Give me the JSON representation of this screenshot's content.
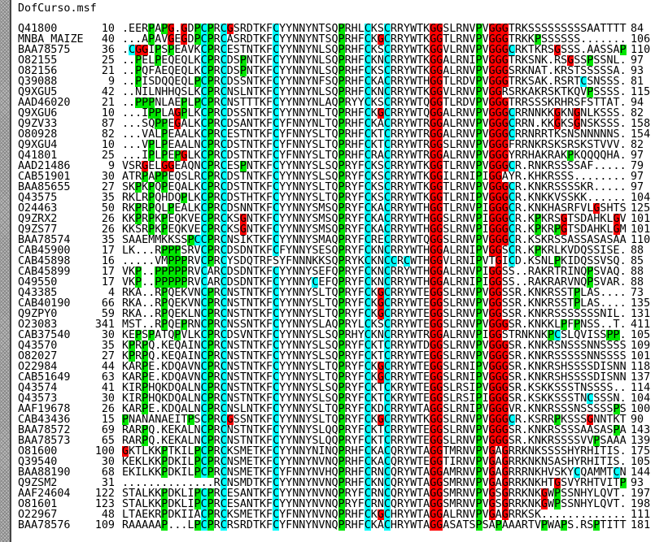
{
  "window": {
    "title": "DofCurso.msf"
  },
  "colors": {
    "C": "#00ffff",
    "P": "#00e600",
    "G": "#ff0000"
  },
  "alignment": [
    {
      "name": "Q41800",
      "start": "10",
      "seq": ".EERPAPG.GDPCPRCGSRDTKFCYYNNYNTSQPRHLCKSCRRYWTKGGSLRNVPVGGGTRKSSSSSSSSSAATTTT",
      "end": "84"
    },
    {
      "name": "MNBA_MAIZE",
      "start": "40",
      "seq": "...APAVGEGDPCPRCASRDTKFCYYNNYNTSQPRHFCKGCRRYWTKGGTLRNVPVGGGTRKKPSSSSSS.......",
      "end": "106"
    },
    {
      "name": "BAA78575",
      "start": "36",
      "seq": ".CGGIPSPEAVKCPRCESTNTKFCYYNNYNLSQPRHFCKSCRRYWTKGGVLRNVPVGGGCRKTKRSGSSS.AASSAP",
      "end": "110"
    },
    {
      "name": "O82155",
      "start": "25",
      "seq": "..PELPEQEQLKCPRCDSPNTKFCYYNNYNLSQPRHFCKNCRRYWTKGGALRNIPVGGGTRKSNK.RSGSSPSSNL.",
      "end": "97"
    },
    {
      "name": "O82156",
      "start": "21",
      "seq": "..PQFAEQEQLKCPRCDSPNTKFCYYNNYNLSQPRHFCKSCRRYWTKGGALRNVPVGGGSRKNAT.KRSTSSSSSA.",
      "end": "93"
    },
    {
      "name": "Q39088",
      "start": "9",
      "seq": "..PISDQQEQLPCPRCDSSNTKFCYYNNYNFSQPRHFCKACRRYWTHGGTLRDVPVGGGTRKSAK.RSRTCSNSSS.",
      "end": "81"
    },
    {
      "name": "Q9XGU5",
      "start": "42",
      "seq": "..NILNHHQSLKCPRCNSLNTKFCYYNNYNLSQPRHFCKNCRRYWTKGGVLRNVPVGGRSRKAKRSKTKQVPSSSS.",
      "end": "115"
    },
    {
      "name": "AAD46020",
      "start": "21",
      "seq": "..PPPNLAEPLPCPRCNSTTTKFCYYNNYNLAQPRYYCKSCRRYWTQGGTLRDVPVGGGTRRSSSKRHRSFSTTAT.",
      "end": "94"
    },
    {
      "name": "Q9XGU6",
      "start": "10",
      "seq": "...IPPLAGPLKCPRCDSSNTKFCYYNNYNLTQPRHFCKGCRRYWTQGGALRNVPVGGGCRRNNKKGKNGNLKSSS.",
      "end": "82"
    },
    {
      "name": "Q9ZV33",
      "start": "87",
      "seq": "...SQPPEGALKCPRCDSANTKFCYFNNYNLTQPRHFCKACRRYWTRGGALRNVPVGGGCRRN.KKGKSGNSKSSS.",
      "end": "158"
    },
    {
      "name": "O80928",
      "start": "82",
      "seq": "...VALPEAALKCPRCESTNTKFCYFNNYSLTQPRHFCKTCRRYWTRGGALRNVPVGGGCRRNRRTKSNSNNNNNS.",
      "end": "154"
    },
    {
      "name": "Q9XGU4",
      "start": "10",
      "seq": "...VPLPEAALNCPRCDSTNTKFCYFNNYSLTQPRHFCKTCRRYWTRGGSLRNVPVGGGFRRNKRSKSRSKSTVVV.",
      "end": "82"
    },
    {
      "name": "Q41801",
      "start": "25",
      "seq": "...IPLPEPGLKCPRCDSTNTKFCYFNNYSLTQPRHFCRACRRYWTRGGALRNVPVGGGYRRHAKRAKPKQQQQHA.",
      "end": "97"
    },
    {
      "name": "AAD21486",
      "start": "9",
      "seq": "VSRGELGGEAQNCPRCESPNTKFCYYNNYSLSQPRYFCKSCRRYWTKGGTLRNVPVGGGCR.RNKRSSSSAF.....",
      "end": "79"
    },
    {
      "name": "CAB51901",
      "start": "30",
      "seq": "ATRPAPPEQSLRCPRCDSTNTKFCYYNNYSLSQPRYFCKSCRRYWTKGGILRNIPIGGAYR.KHKRSSS........",
      "end": "97"
    },
    {
      "name": "BAA85655",
      "start": "27",
      "seq": "SKPKPQPEQALKCPRCDSTNTKFCYYNNYSLTQPRYFCKSCRRYWTKGGTLRNVPVGGGCR.KNKRSSSSKR.....",
      "end": "97"
    },
    {
      "name": "Q43575",
      "start": "35",
      "seq": "RKLRPQHDQPLKCPRCDSTHTKFCYYNNYSLTQPRYFCKSCRRYWTKGGTLRNIPVGGGCR.KNKKVSSKK......",
      "end": "104"
    },
    {
      "name": "O24463",
      "start": "50",
      "seq": "RKPRPQLPEALKCPRCDSNNTKFCYYNNYSMSQPRYFCKACRRYWTHGGTLRNVPIGGGCR.KNKHASRFVLGSHTS",
      "end": "125"
    },
    {
      "name": "Q9ZRX2",
      "start": "26",
      "seq": "KKPRPKPEQKVECPRCKSGNTKFCYYNNYSMSQPRYFCKACRRYWTHGGSLRNVPIGGGCR.KPKRSGTSDAHKLGV",
      "end": "101"
    },
    {
      "name": "Q9ZS77",
      "start": "26",
      "seq": "KKSRPKPEQKVECPRCKSGNTKFCYYNNYSMSQPRYFCKACRRYWTHGGSLRNVPIGGGCR.KPKRPGTSDAHKLGM",
      "end": "101"
    },
    {
      "name": "BAA78574",
      "start": "35",
      "seq": "SAAEMMKKSSPCCPRCNSIKTKFCYYNNYSMAQPRYFCRECRRYWTQGGSLRNVPVGGGCR.KSKRSSASSASASAA",
      "end": "110"
    },
    {
      "name": "CAB45900",
      "start": "17",
      "seq": "LK...RPPPSRVCPRCDSDNTKFCFYNNYSESQPRYFCKNCRRYWTHGGALRNIPVGGSCR.KPKRLKVDQSSISE.",
      "end": "88"
    },
    {
      "name": "CAB45898",
      "start": "16",
      "seq": ".....VMPPPRVCPRCYSDQTRFSYFNNNKKSQPRYKCKNCCRCWTHGGVLRNIPVTGICD.KSNLPKIDQSSVSQ.",
      "end": "85"
    },
    {
      "name": "CAB45899",
      "start": "17",
      "seq": "VKP..PPPPPRVCARCDSDNTKFCYYNNYSEFQPRYFCKNCRRYWTHGGALRNVPIGGSS..RAKRTRINQPSVAQ.",
      "end": "88"
    },
    {
      "name": "O49550",
      "start": "17",
      "seq": "VKP..PPPPPRVCARCDSDNTKFCYYNNYCEFQPRYFCKNCRRYWTHGGALRNIPIGGSS..RAKRARVNQPSVAR.",
      "end": "88"
    },
    {
      "name": "Q43385",
      "start": "4",
      "seq": "RKA..RPQEKVNCPRCNSTNTKFCYYNNYSLTQPRYFCKGCRRYWTEGGSLRNVPVGGSSR.KNKRSSTPLAS....",
      "end": "73"
    },
    {
      "name": "CAB40190",
      "start": "66",
      "seq": "RKA..RPQEKVNCPRCNSTNTKFCYYNNYSLTQPRYFCKGCRRYWTEGGSLRNVPVGGSSR.KNKRSSTPLAS....",
      "end": "135"
    },
    {
      "name": "Q9ZPY0",
      "start": "59",
      "seq": "RKA..RPQEKLNCPRCNSTNTKFCYYNNYSLTQPRYFCKGCRRYWTEGGSLRNVPVGGSSR.KNKRSSSSSSSNIL.",
      "end": "131"
    },
    {
      "name": "O23083",
      "start": "341",
      "seq": "MST..RPQEPRNCPRCNSSNTKFCYYNNYSLAQPRYLCKSCRRYWTEGGSLRNVPVGGGSR.KNKKLPFPNSS..T.",
      "end": "411"
    },
    {
      "name": "CAB37540",
      "start": "30",
      "seq": "KEPSPATQPVLKCPRCDSVNTKFCYYNNYSLSQPRHYCKNCRRYWTRGGALRNVPIGGSTRNKNKPCSLQVISSPP.",
      "end": "105"
    },
    {
      "name": "Q43570",
      "start": "35",
      "seq": "KPRPQ.KEQAINCPRCNSTNTKFCYYNNYSLSQPRYFCKTCRRYWTDGGSLRNVPVGGGSR.KNKRSNSSSNNSSSS",
      "end": "109"
    },
    {
      "name": "O82027",
      "start": "27",
      "seq": "KPRPQ.KEQAINCPRCNSTNTKFCYYNNYSLSQPRYFCKTCRRYWTEGGSLRNVPVGGGSR.KNKRSSSSSNNSSSS",
      "end": "101"
    },
    {
      "name": "O22984",
      "start": "44",
      "seq": "KARPE.KDQAVNCPRCNSTNTKFCYYNNYSLTQPRYFCKGCRRYWTEGGSLRNIPVGGGSR.KNKRSHSSSSDISNN",
      "end": "118"
    },
    {
      "name": "CAB51649",
      "start": "63",
      "seq": "KARPE.KDQAVNCPRCNSTNTKFCYYNNYSLTQPRYFCKGCRRYWTEGGSLRNIPVGGGSR.KNKRSHSSSSDISNN",
      "end": "137"
    },
    {
      "name": "Q43574",
      "start": "41",
      "seq": "KIRPHQKDQALNCPRCNSTNTKFCYYNNYSLSQPRYFCKTCKRYWTEGGSLRSIPVGGGSR.KSKKSSSTNSSSS..",
      "end": "114"
    },
    {
      "name": "Q43573",
      "start": "30",
      "seq": "KIRPHQKDQALNCPRCNSTNTKFCYYNNYSLSQPRYFCKTCKRYWTEGGSLRSIPIGGGSR.KSKKSSSTNCSSSN.",
      "end": "104"
    },
    {
      "name": "AAF19678",
      "start": "26",
      "seq": "KARPE.KDQALNCPRCNSLNTKFCYYNNYSLTQPRYFCKDCRRYWTAGGSLRNIPVGGGVR.KNKRSSSNSSSSSPS",
      "end": "100"
    },
    {
      "name": "CAB43436",
      "start": "15",
      "seq": "PNANANAEITPSCPRCGSSNTKFCYYNNYSLTQPRYFCKGCRRYWTKGGSLRNVPVGGGCR.KSRRPKSSSGNNTKT",
      "end": "90"
    },
    {
      "name": "BAA78572",
      "start": "69",
      "seq": "RARPQ.KEKALNCPRCNSTNTKFCYYNNYSLQQPRYFCKTCRRYWTEGGSLRNVPVGGGSR.KNKRSSSSAASASPA",
      "end": "143"
    },
    {
      "name": "BAA78573",
      "start": "65",
      "seq": "RARPQ.KEKALNCPRCNSTNTKFCYYNNYSLQQPRYFCKTCRRYWTEGGSLRNVPVGGGSR.KNKRSSSSVVPSAAA",
      "end": "139"
    },
    {
      "name": "O81600",
      "start": "100",
      "seq": "GKTLKKPTKILPCPRCKSMETKFCYYNNYNINQPRHFCKACQRYWTAGGTMRNVPVGAGRRKNKSSSSHYRHITIS.",
      "end": "175"
    },
    {
      "name": "Q39540",
      "start": "30",
      "seq": "KEKLKKPDKILPCPRCNSMETKFCYYNNYNVNQPRHFCKACQRYWTEGGTIRNVPVGAGRRKNKNSASHYRHITIS.",
      "end": "105"
    },
    {
      "name": "BAA88190",
      "start": "68",
      "seq": "EKILKKPDKILPCPRCNSMETKFCYFNNYNVHQPRHFCRNCQRYWTAGGAMRNVPVGAGRRRNKHVSKYCQAMMTCN",
      "end": "144"
    },
    {
      "name": "Q9ZSM2",
      "start": "31",
      "seq": "..............RCNSMDTKFCYYNNYNVNQPRHFCKNCQRYWTAGGSMRNVPVGAGRRKNKHTGSVYRHTVITP",
      "end": "93"
    },
    {
      "name": "AAF24604",
      "start": "122",
      "seq": "STALKKPDKLIPCPRCESANTKFCYYNNYNVNQPRYFCRNCQRYWTAGGSMRNVPVGSGRRKNKGWPSSNHYLQVT.",
      "end": "197"
    },
    {
      "name": "O81601",
      "start": "123",
      "seq": "STALKKPDKLIPCPRCESANTKFCYYNNYNVNQPRYFCRNCQRYWTAGGSMRNVPVGSGRRKNKGWPSSNHYLQVT.",
      "end": "198"
    },
    {
      "name": "O22967",
      "start": "48",
      "seq": "LTAEKRPDKIIACPRCKSMETKFCYFNNYNVNQPRHFCKGCHRYWTAGGALRNVPVGAGRRKSK.............",
      "end": "111"
    },
    {
      "name": "BAA78576",
      "start": "109",
      "seq": "RAAAAAP...LPCPRCRSRDTKFCYFNNYNVNQPRHFCKACHRYWTAGGASATSPSAPAAARTVPWAPS.RSPTITT",
      "end": "181"
    }
  ]
}
